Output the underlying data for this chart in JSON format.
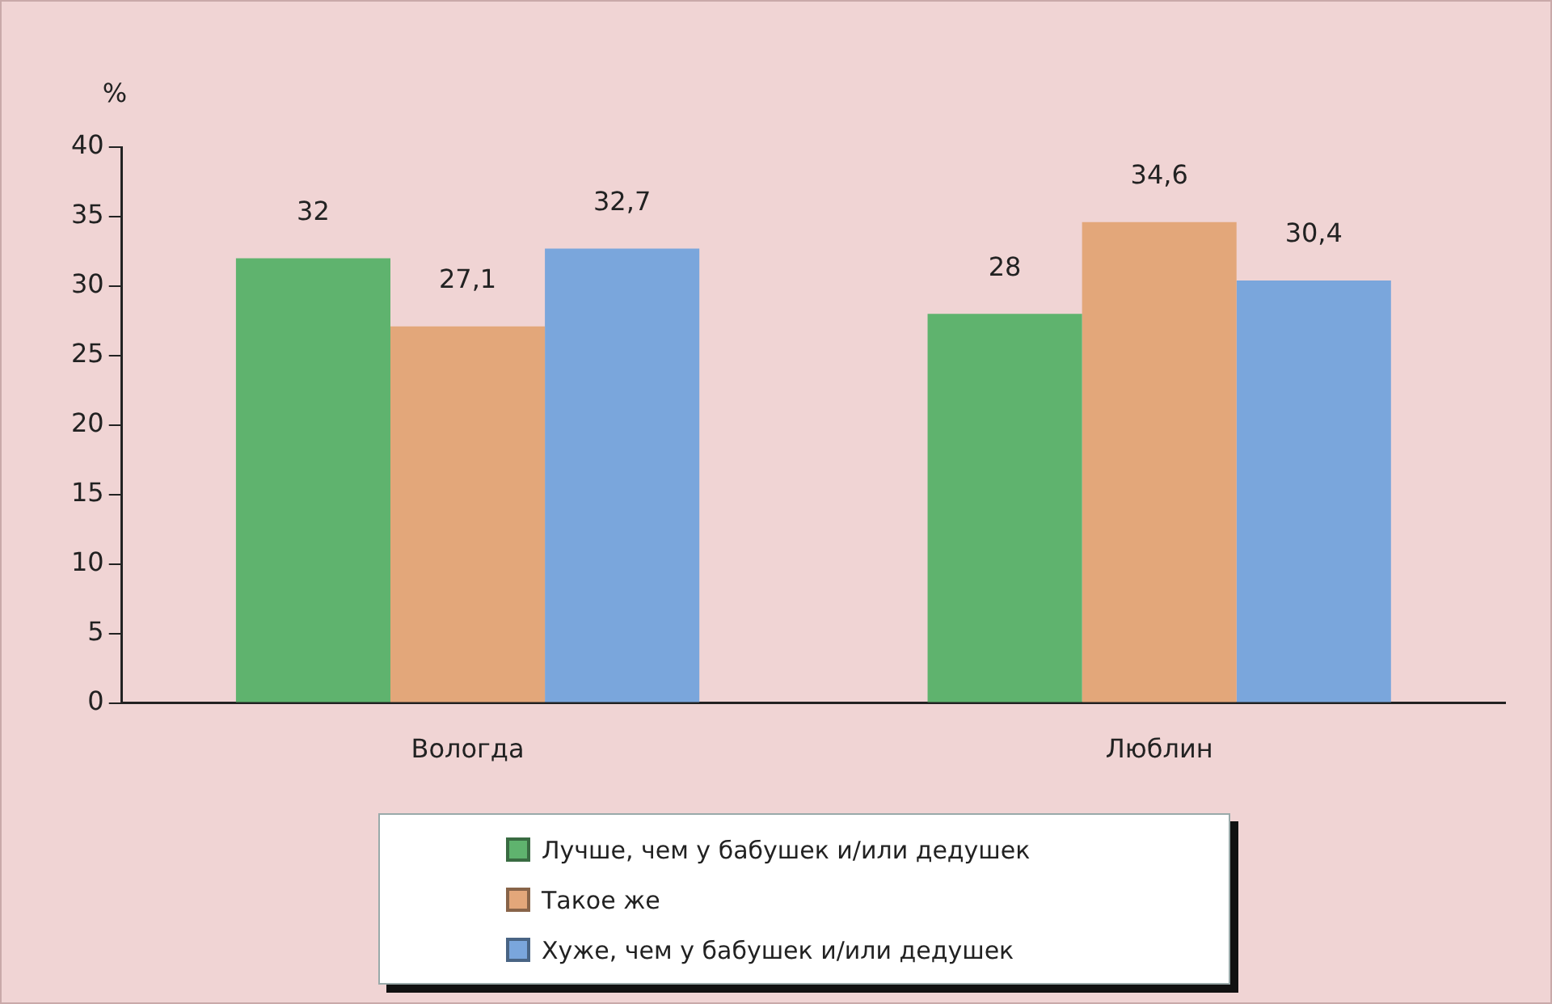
{
  "chart_data": {
    "type": "bar",
    "ylabel": "%",
    "categories": [
      "Вологда",
      "Люблин"
    ],
    "series": [
      {
        "name": "Лучше, чем у бабушек и/или дедушек",
        "color": "#5fb36e",
        "values": [
          32,
          28
        ],
        "value_labels": [
          "32",
          "28"
        ]
      },
      {
        "name": "Такое же",
        "color": "#e3a77a",
        "values": [
          27.1,
          34.6
        ],
        "value_labels": [
          "27,1",
          "34,6"
        ]
      },
      {
        "name": "Хуже, чем у бабушек и/или дедушек",
        "color": "#7aa6dc",
        "values": [
          32.7,
          30.4
        ],
        "value_labels": [
          "32,7",
          "30,4"
        ]
      }
    ],
    "ylim": [
      0,
      40
    ],
    "yticks": [
      0,
      5,
      10,
      15,
      20,
      25,
      30,
      35,
      40
    ],
    "grid": false,
    "legend": "bottom"
  }
}
